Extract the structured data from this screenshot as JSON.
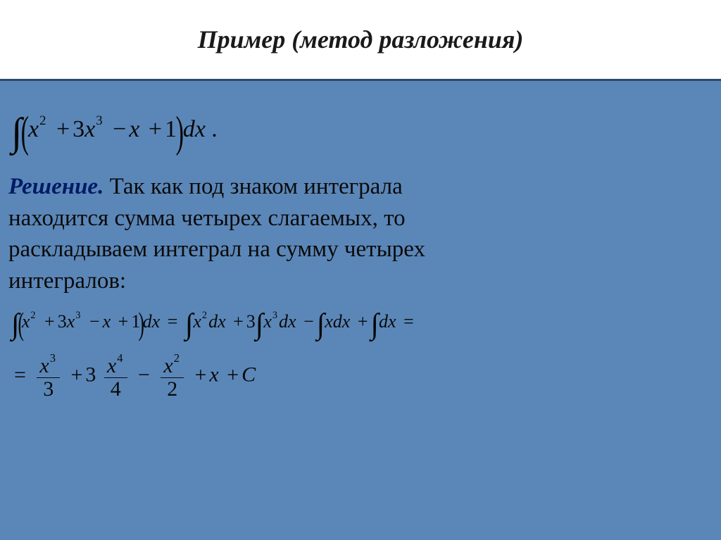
{
  "slide": {
    "background_color": "#5b87b8",
    "title_bar_color": "#ffffff",
    "title_underline_color": "#2b4a6b",
    "title": {
      "text": "Пример (метод разложения)",
      "font_style": "italic bold",
      "font_size_pt": 28,
      "color": "#1a1a1a"
    },
    "problem": {
      "integral_expr": "∫ (x² + 3x³ − x + 1) dx .",
      "terms": [
        {
          "coef": 1,
          "var": "x",
          "power": 2
        },
        {
          "coef": 3,
          "var": "x",
          "power": 3
        },
        {
          "coef": -1,
          "var": "x",
          "power": 1
        },
        {
          "coef": 1,
          "var": "",
          "power": 0
        }
      ],
      "font_color": "#080808"
    },
    "solution_label": {
      "text": "Решение.",
      "color": "#001a66",
      "font_style": "italic bold"
    },
    "explanation_lines": [
      "Так как под знаком интеграла",
      "находится сумма четырех слагаемых, то",
      "раскладываем интеграл на сумму четырех",
      "интегралов:"
    ],
    "expanded_line": {
      "lhs": "∫ (x² + 3x³ − x + 1) dx",
      "rhs_terms": [
        "∫ x² dx",
        "+ 3 ∫ x³ dx",
        "− ∫ x dx",
        "+ ∫ dx",
        "="
      ]
    },
    "result_line": {
      "terms": [
        {
          "sign": "=",
          "num": "x³",
          "den": "3"
        },
        {
          "sign": "+",
          "coef": "3",
          "num": "x⁴",
          "den": "4"
        },
        {
          "sign": "−",
          "num": "x²",
          "den": "2"
        },
        {
          "sign": "+",
          "plain": "x"
        },
        {
          "sign": "+",
          "plain": "C"
        }
      ]
    },
    "text_color": "#0a0a0a",
    "body_font_size_pt": 25
  }
}
